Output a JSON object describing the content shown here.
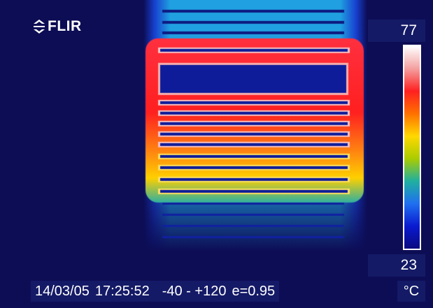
{
  "brand": {
    "logo_text": "FLIR",
    "logo_icon": "flir-diamond-icon",
    "color": "#ffffff"
  },
  "scale": {
    "max": "77",
    "min": "23",
    "unit": "°C",
    "palette": [
      "#ffffff",
      "#f4a0a0",
      "#ff2020",
      "#ff7000",
      "#ffd800",
      "#aacc00",
      "#20b0a0",
      "#2070f0",
      "#0a1ad0",
      "#0a0a80"
    ]
  },
  "status": {
    "date": "14/03/05",
    "time": "17:25:52",
    "range": "-40 - +120",
    "emissivity": "e=0.95"
  },
  "scene": {
    "subject": "heated-towel-radiator",
    "background_color": "#0d0d55"
  }
}
